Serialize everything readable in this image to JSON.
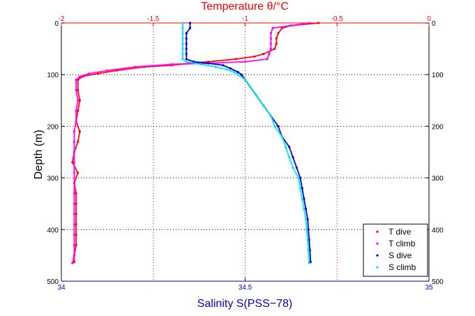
{
  "chart_data": {
    "type": "scatter",
    "title": "Temperature θ/°C",
    "xlabel": "Salinity S(PSS−78)",
    "ylabel": "Depth (m)",
    "temperature_axis": {
      "lim": [
        -2,
        0
      ],
      "ticks": [
        -2,
        -1.5,
        -1,
        -0.5,
        0
      ],
      "tick_labels": [
        "-2",
        "-1.5",
        "-1",
        "-0.5",
        "0"
      ]
    },
    "salinity_axis": {
      "lim": [
        34,
        35
      ],
      "ticks": [
        34,
        34.5,
        35
      ],
      "tick_labels": [
        "34",
        "34.5",
        "35"
      ]
    },
    "depth_axis": {
      "lim": [
        0,
        500
      ],
      "reversed": true,
      "ticks": [
        0,
        100,
        200,
        300,
        400,
        500
      ],
      "tick_labels": [
        "0",
        "100",
        "200",
        "300",
        "400",
        "500"
      ]
    },
    "grid": true,
    "legend": "bottom-right",
    "series": [
      {
        "name": "T dive",
        "axis": "temperature",
        "color": "#ff0000",
        "points": [
          [
            -0.6,
            0
          ],
          [
            -0.75,
            5
          ],
          [
            -0.8,
            10
          ],
          [
            -0.82,
            20
          ],
          [
            -0.83,
            30
          ],
          [
            -0.83,
            40
          ],
          [
            -0.84,
            50
          ],
          [
            -0.9,
            60
          ],
          [
            -0.95,
            65
          ],
          [
            -1.05,
            70
          ],
          [
            -1.2,
            75
          ],
          [
            -1.3,
            78
          ],
          [
            -1.4,
            82
          ],
          [
            -1.55,
            85
          ],
          [
            -1.7,
            92
          ],
          [
            -1.8,
            98
          ],
          [
            -1.88,
            103
          ],
          [
            -1.91,
            110
          ],
          [
            -1.91,
            130
          ],
          [
            -1.9,
            150
          ],
          [
            -1.91,
            170
          ],
          [
            -1.92,
            190
          ],
          [
            -1.9,
            210
          ],
          [
            -1.91,
            230
          ],
          [
            -1.93,
            250
          ],
          [
            -1.94,
            270
          ],
          [
            -1.91,
            290
          ],
          [
            -1.93,
            310
          ],
          [
            -1.92,
            330
          ],
          [
            -1.92,
            350
          ],
          [
            -1.92,
            370
          ],
          [
            -1.92,
            390
          ],
          [
            -1.92,
            410
          ],
          [
            -1.92,
            430
          ],
          [
            -1.93,
            450
          ],
          [
            -1.93,
            463
          ]
        ]
      },
      {
        "name": "T climb",
        "axis": "temperature",
        "color": "#ff00ff",
        "points": [
          [
            -0.65,
            0
          ],
          [
            -0.75,
            5
          ],
          [
            -0.85,
            10
          ],
          [
            -0.86,
            20
          ],
          [
            -0.86,
            30
          ],
          [
            -0.86,
            40
          ],
          [
            -0.86,
            50
          ],
          [
            -0.87,
            60
          ],
          [
            -0.88,
            70
          ],
          [
            -1.0,
            75
          ],
          [
            -1.2,
            78
          ],
          [
            -1.4,
            80
          ],
          [
            -1.6,
            85
          ],
          [
            -1.75,
            92
          ],
          [
            -1.85,
            98
          ],
          [
            -1.9,
            104
          ],
          [
            -1.92,
            110
          ],
          [
            -1.92,
            130
          ],
          [
            -1.91,
            150
          ],
          [
            -1.92,
            170
          ],
          [
            -1.92,
            190
          ],
          [
            -1.93,
            210
          ],
          [
            -1.93,
            230
          ],
          [
            -1.93,
            250
          ],
          [
            -1.93,
            270
          ],
          [
            -1.93,
            290
          ],
          [
            -1.93,
            310
          ],
          [
            -1.93,
            330
          ],
          [
            -1.93,
            350
          ],
          [
            -1.93,
            370
          ],
          [
            -1.93,
            390
          ],
          [
            -1.93,
            410
          ],
          [
            -1.93,
            430
          ],
          [
            -1.93,
            450
          ],
          [
            -1.94,
            465
          ]
        ]
      },
      {
        "name": "S dive",
        "axis": "salinity",
        "color": "#0000cc",
        "points": [
          [
            34.35,
            0
          ],
          [
            34.35,
            10
          ],
          [
            34.34,
            20
          ],
          [
            34.34,
            30
          ],
          [
            34.34,
            40
          ],
          [
            34.34,
            50
          ],
          [
            34.34,
            60
          ],
          [
            34.34,
            70
          ],
          [
            34.36,
            75
          ],
          [
            34.4,
            78
          ],
          [
            34.44,
            82
          ],
          [
            34.46,
            88
          ],
          [
            34.48,
            95
          ],
          [
            34.49,
            100
          ],
          [
            34.5,
            110
          ],
          [
            34.51,
            120
          ],
          [
            34.53,
            140
          ],
          [
            34.55,
            160
          ],
          [
            34.57,
            180
          ],
          [
            34.59,
            200
          ],
          [
            34.6,
            220
          ],
          [
            34.62,
            240
          ],
          [
            34.63,
            260
          ],
          [
            34.64,
            280
          ],
          [
            34.65,
            300
          ],
          [
            34.655,
            320
          ],
          [
            34.66,
            340
          ],
          [
            34.665,
            360
          ],
          [
            34.67,
            380
          ],
          [
            34.672,
            400
          ],
          [
            34.674,
            420
          ],
          [
            34.676,
            440
          ],
          [
            34.678,
            463
          ]
        ]
      },
      {
        "name": "S climb",
        "axis": "salinity",
        "color": "#00e5ee",
        "points": [
          [
            34.33,
            0
          ],
          [
            34.33,
            10
          ],
          [
            34.33,
            20
          ],
          [
            34.33,
            30
          ],
          [
            34.33,
            40
          ],
          [
            34.33,
            50
          ],
          [
            34.33,
            60
          ],
          [
            34.33,
            70
          ],
          [
            34.34,
            75
          ],
          [
            34.38,
            80
          ],
          [
            34.42,
            85
          ],
          [
            34.45,
            90
          ],
          [
            34.47,
            95
          ],
          [
            34.48,
            100
          ],
          [
            34.5,
            110
          ],
          [
            34.51,
            120
          ],
          [
            34.53,
            140
          ],
          [
            34.55,
            160
          ],
          [
            34.57,
            180
          ],
          [
            34.58,
            200
          ],
          [
            34.6,
            220
          ],
          [
            34.61,
            240
          ],
          [
            34.62,
            260
          ],
          [
            34.63,
            280
          ],
          [
            34.645,
            300
          ],
          [
            34.65,
            320
          ],
          [
            34.655,
            340
          ],
          [
            34.66,
            360
          ],
          [
            34.665,
            380
          ],
          [
            34.667,
            400
          ],
          [
            34.67,
            420
          ],
          [
            34.672,
            440
          ],
          [
            34.674,
            465
          ]
        ]
      }
    ]
  }
}
